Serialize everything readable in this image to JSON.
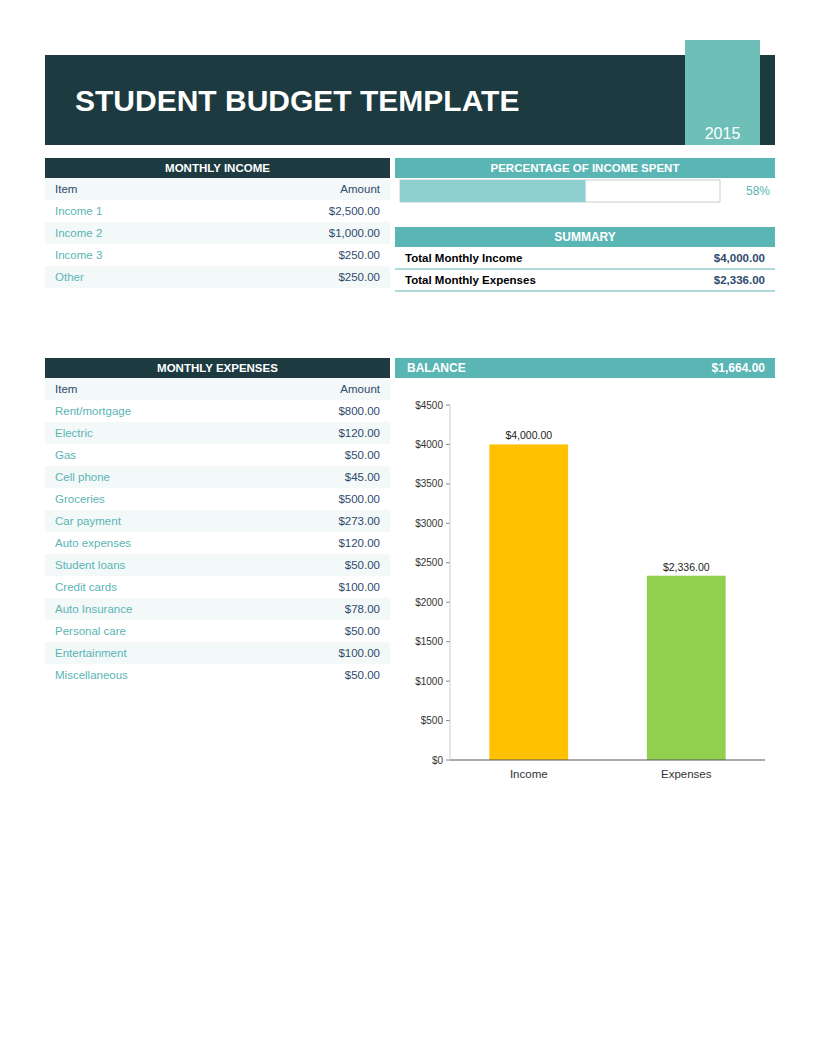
{
  "chart_data": {
    "type": "bar",
    "title": "STUDENT BUDGET TEMPLATE",
    "subtitle": "2015",
    "categories": [
      "Income",
      "Expenses"
    ],
    "values": [
      4000,
      2336
    ],
    "value_labels": [
      "$4,000.00",
      "$2,336.00"
    ],
    "data_labels": true,
    "colors": [
      "#ffc000",
      "#92d050"
    ],
    "ylim": [
      0,
      4500
    ],
    "yticks": [
      {
        "value": 0,
        "label": "$0"
      },
      {
        "value": 500,
        "label": "$500"
      },
      {
        "value": 1000,
        "label": "$1000"
      },
      {
        "value": 1500,
        "label": "$1500"
      },
      {
        "value": 2000,
        "label": "$2000"
      },
      {
        "value": 2500,
        "label": "$2500"
      },
      {
        "value": 3000,
        "label": "$3000"
      },
      {
        "value": 3500,
        "label": "$3500"
      },
      {
        "value": 4000,
        "label": "$4000"
      },
      {
        "value": 4500,
        "label": "$4500"
      }
    ],
    "grid": false,
    "annotations": [
      {
        "title": "MONTHLY INCOME",
        "rows": [
          [
            "Item",
            "Amount"
          ],
          [
            "Income 1",
            "$2,500.00"
          ],
          [
            "Income 2",
            "$1,000.00"
          ],
          [
            "Income 3",
            "$250.00"
          ],
          [
            "Other",
            "$250.00"
          ]
        ]
      },
      {
        "title": "PERCENTAGE OF INCOME SPENT",
        "value": 58,
        "value_label": "58%"
      },
      {
        "title": "SUMMARY",
        "rows": [
          [
            "Total Monthly Income",
            "$4,000.00"
          ],
          [
            "Total Monthly Expenses",
            "$2,336.00"
          ]
        ]
      },
      {
        "title": "MONTHLY EXPENSES",
        "rows": [
          [
            "Item",
            "Amount"
          ],
          [
            "Rent/mortgage",
            "$800.00"
          ],
          [
            "Electric",
            "$120.00"
          ],
          [
            "Gas",
            "$50.00"
          ],
          [
            "Cell phone",
            "$45.00"
          ],
          [
            "Groceries",
            "$500.00"
          ],
          [
            "Car payment",
            "$273.00"
          ],
          [
            "Auto expenses",
            "$120.00"
          ],
          [
            "Student loans",
            "$50.00"
          ],
          [
            "Credit cards",
            "$100.00"
          ],
          [
            "Auto Insurance",
            "$78.00"
          ],
          [
            "Personal care",
            "$50.00"
          ],
          [
            "Entertainment",
            "$100.00"
          ],
          [
            "Miscellaneous",
            "$50.00"
          ]
        ]
      },
      {
        "title": "BALANCE",
        "value_label": "$1,664.00"
      }
    ]
  }
}
